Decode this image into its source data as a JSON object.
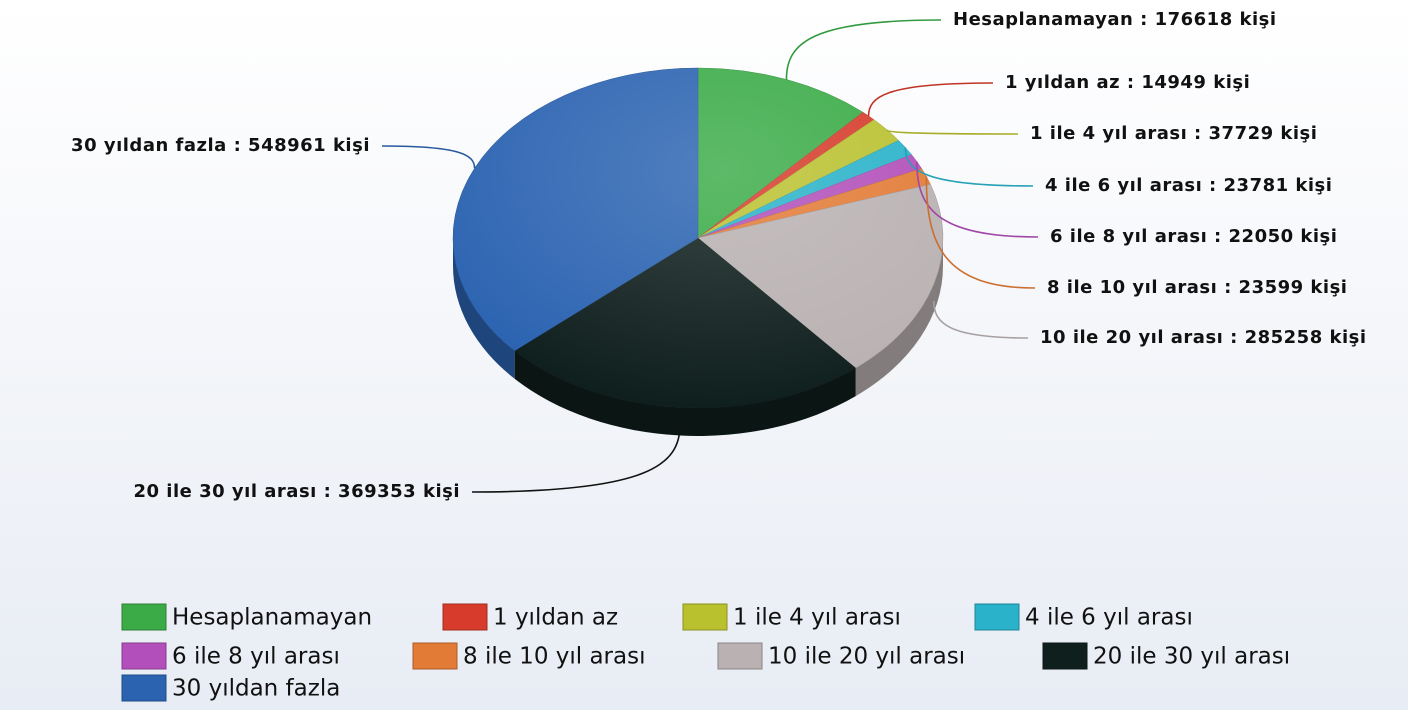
{
  "chart_data": {
    "type": "pie",
    "categories": [
      "Hesaplanamayan",
      "1 yıldan az",
      "1 ile 4 yıl arası",
      "4 ile 6 yıl arası",
      "6 ile 8 yıl arası",
      "8 ile 10 yıl arası",
      "10 ile 20 yıl arası",
      "20 ile 30 yıl arası",
      "30 yıldan fazla"
    ],
    "values": [
      176618,
      14949,
      37729,
      23781,
      22050,
      23599,
      285258,
      369353,
      548961
    ],
    "value_labels": [
      "Hesaplanamayan : 176618 kişi",
      "1 yıldan az : 14949 kişi",
      "1 ile 4 yıl arası : 37729 kişi",
      "4 ile 6 yıl arası : 23781 kişi",
      "6 ile 8 yıl arası : 22050 kişi",
      "8 ile 10 yıl arası : 23599 kişi",
      "10 ile 20 yıl arası : 285258 kişi",
      "20 ile 30 yıl arası : 369353 kişi",
      "30 yıldan fazla : 548961 kişi"
    ],
    "colors": [
      "#3aab47",
      "#d63b2b",
      "#b9c12f",
      "#29b2c9",
      "#b24fba",
      "#e27b36",
      "#b9b1b2",
      "#0f1f1d",
      "#2b63b1"
    ],
    "legend": "bottom"
  }
}
